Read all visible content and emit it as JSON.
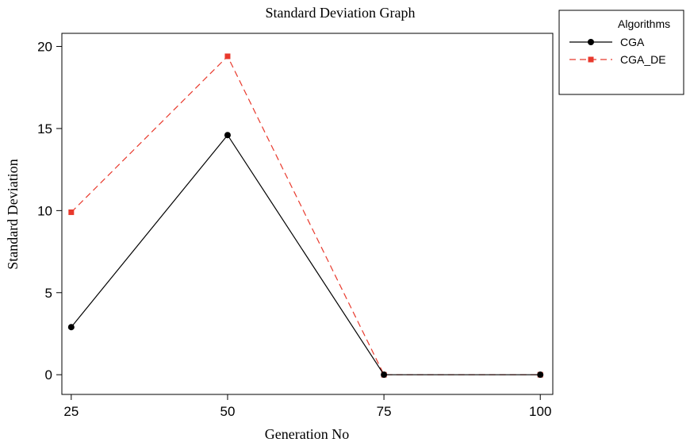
{
  "chart_data": {
    "type": "line",
    "title": "Standard Deviation Graph",
    "xlabel": "Generation No",
    "ylabel": "Standard Deviation",
    "x": [
      25,
      50,
      75,
      100
    ],
    "xticks": [
      "25",
      "50",
      "75",
      "100"
    ],
    "yticks": [
      "0",
      "5",
      "10",
      "15",
      "20"
    ],
    "xlim": [
      23.5,
      102
    ],
    "ylim": [
      -1.2,
      20.8
    ],
    "grid": false,
    "legend": {
      "title": "Algorithms",
      "placement": "outside-top-right"
    },
    "series": [
      {
        "name": "CGA",
        "values": [
          2.9,
          14.6,
          0,
          0
        ],
        "color": "#000000",
        "marker": "circle",
        "dash": "solid"
      },
      {
        "name": "CGA_DE",
        "values": [
          9.9,
          19.4,
          0,
          0
        ],
        "color": "#e8392c",
        "marker": "square",
        "dash": "dashed"
      }
    ]
  }
}
